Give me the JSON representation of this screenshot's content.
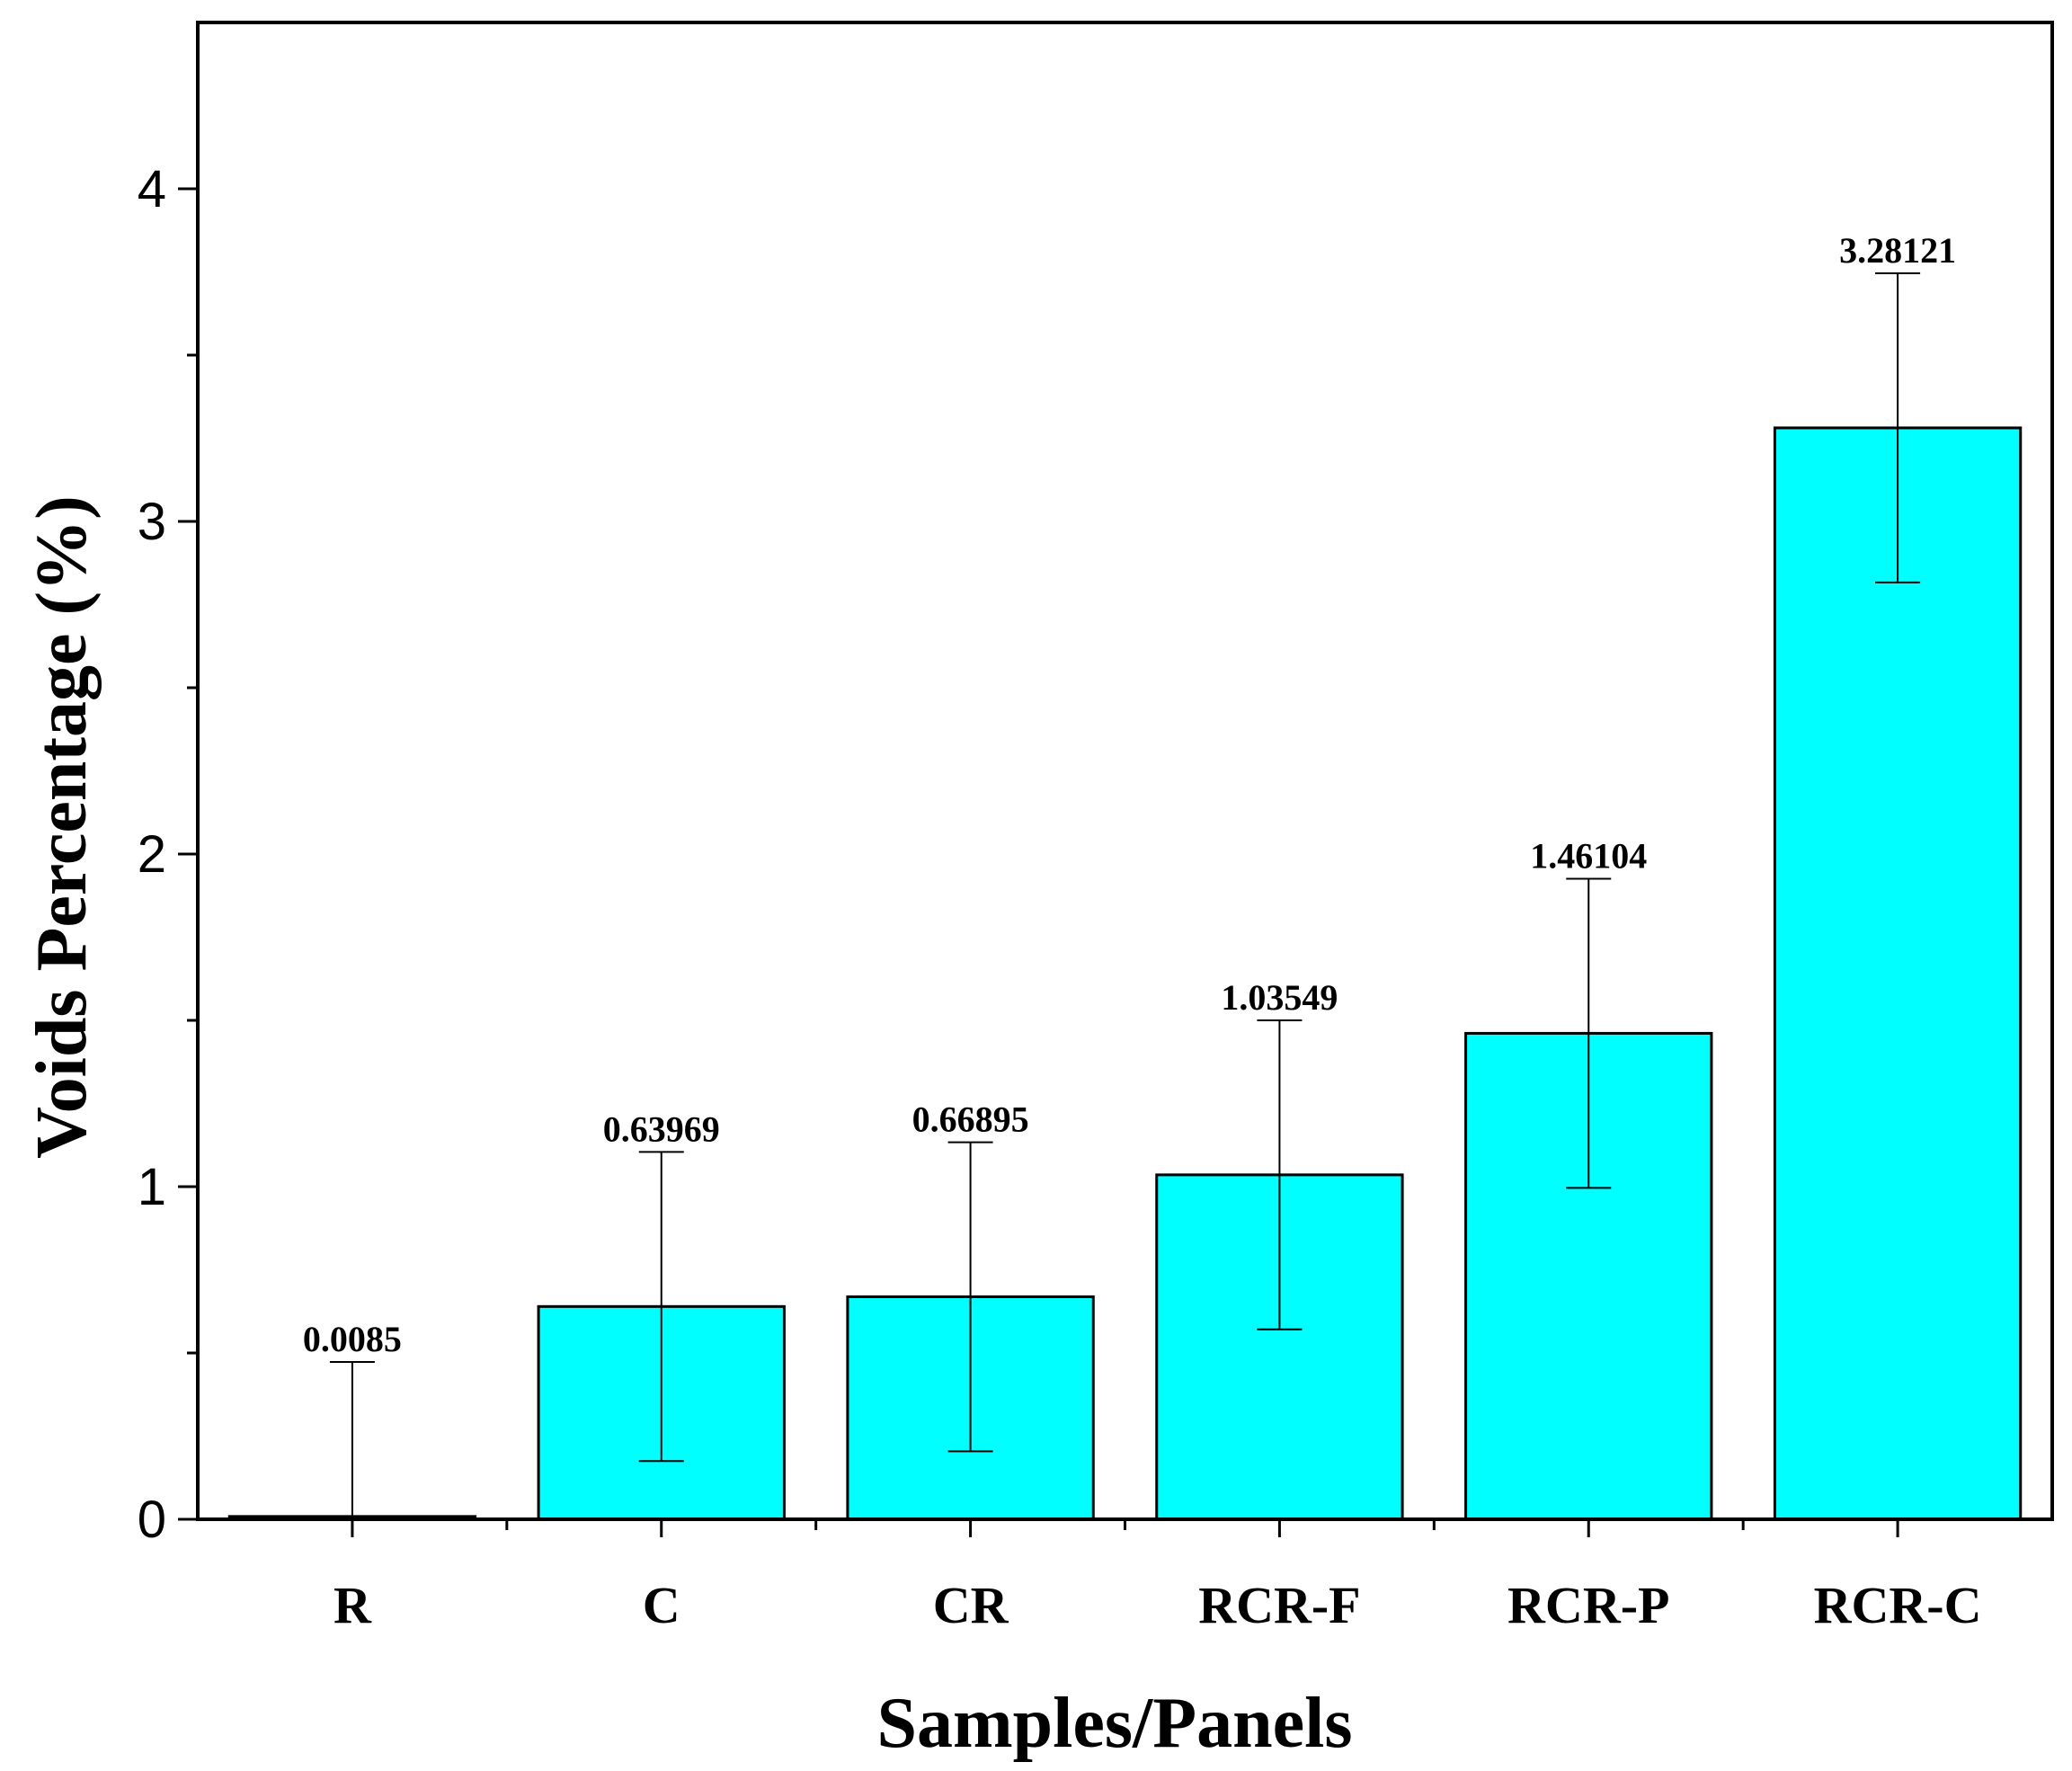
{
  "chart_data": {
    "type": "bar",
    "title": "",
    "xlabel": "Samples/Panels",
    "ylabel": "Voids Percentage (%)",
    "categories": [
      "R",
      "C",
      "CR",
      "RCR-F",
      "RCR-P",
      "RCR-C"
    ],
    "values": [
      0.0085,
      0.63969,
      0.66895,
      1.03549,
      1.46104,
      3.28121
    ],
    "value_labels": [
      "0.0085",
      "0.63969",
      "0.66895",
      "1.03549",
      "1.46104",
      "3.28121"
    ],
    "error_plus_minus": [
      0.4646,
      0.4646,
      0.4646,
      0.4646,
      0.4646,
      0.4646
    ],
    "ylim": [
      0,
      4.5
    ],
    "yticks": [
      0,
      1,
      2,
      3,
      4
    ],
    "ytick_labels": [
      "0",
      "1",
      "2",
      "3",
      "4"
    ],
    "bar_color": "#00FFFF",
    "grid": false,
    "legend": "none"
  }
}
